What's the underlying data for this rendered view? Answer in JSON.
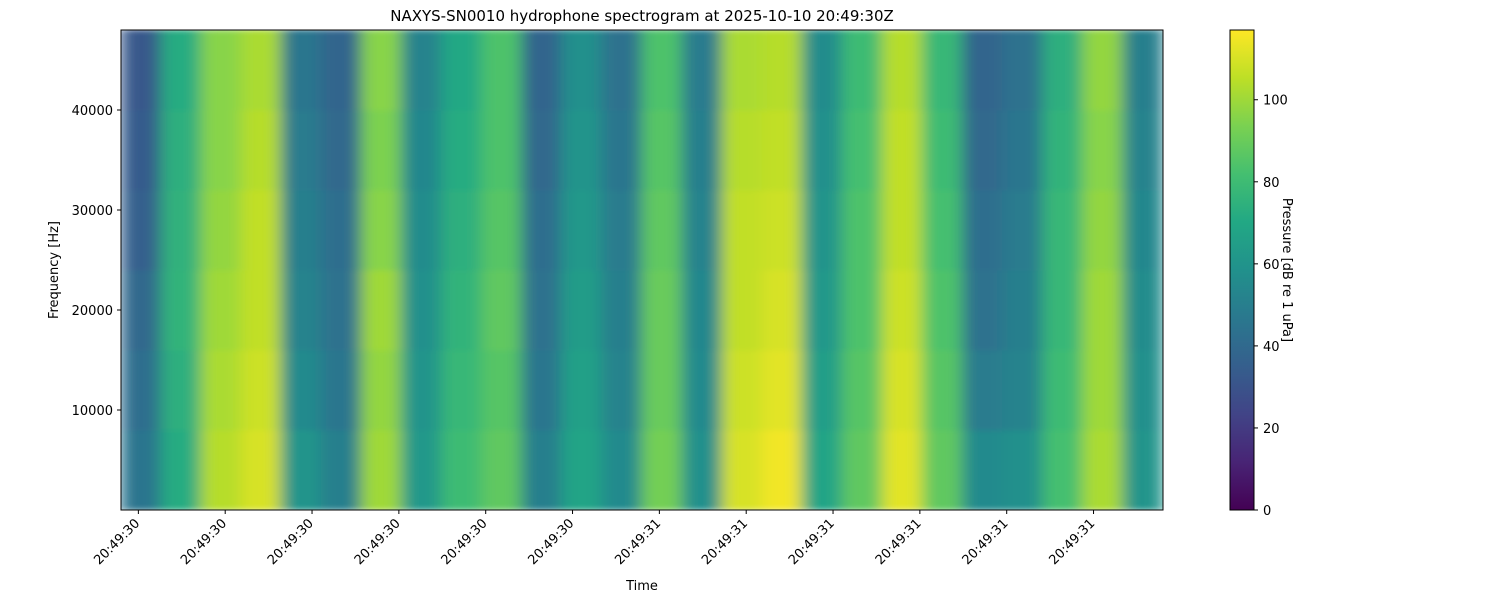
{
  "chart_data": {
    "type": "heatmap",
    "title": "NAXYS-SN0010 hydrophone spectrogram at 2025-10-10 20:49:30Z",
    "xlabel": "Time",
    "ylabel": "Frequency [Hz]",
    "colorbar_label": "Pressure [dB re 1 uPa]",
    "colormap": "viridis",
    "xlim": [
      0.38,
      1.58
    ],
    "xticks": [
      {
        "value": 0.4,
        "label": "20:49:30"
      },
      {
        "value": 0.5,
        "label": "20:49:30"
      },
      {
        "value": 0.6,
        "label": "20:49:30"
      },
      {
        "value": 0.7,
        "label": "20:49:30"
      },
      {
        "value": 0.8,
        "label": "20:49:30"
      },
      {
        "value": 0.9,
        "label": "20:49:30"
      },
      {
        "value": 1.0,
        "label": "20:49:31"
      },
      {
        "value": 1.1,
        "label": "20:49:31"
      },
      {
        "value": 1.2,
        "label": "20:49:31"
      },
      {
        "value": 1.3,
        "label": "20:49:31"
      },
      {
        "value": 1.4,
        "label": "20:49:31"
      },
      {
        "value": 1.5,
        "label": "20:49:31"
      }
    ],
    "ylim": [
      0,
      48000
    ],
    "yticks": [
      10000,
      20000,
      30000,
      40000
    ],
    "clim": [
      0,
      117
    ],
    "cticks": [
      0,
      20,
      40,
      60,
      80,
      100
    ],
    "z": [
      [
        45,
        72,
        104,
        110,
        60,
        50,
        100,
        62,
        80,
        88,
        50,
        68,
        55,
        92,
        58,
        110,
        115,
        68,
        88,
        112,
        88,
        55,
        58,
        82,
        102,
        60
      ],
      [
        42,
        74,
        102,
        108,
        55,
        46,
        98,
        60,
        78,
        86,
        46,
        66,
        52,
        90,
        55,
        108,
        112,
        65,
        86,
        110,
        86,
        48,
        52,
        80,
        100,
        58
      ],
      [
        40,
        76,
        100,
        106,
        52,
        44,
        100,
        58,
        76,
        88,
        44,
        64,
        50,
        90,
        54,
        106,
        110,
        62,
        84,
        108,
        84,
        44,
        50,
        78,
        100,
        56
      ],
      [
        36,
        75,
        98,
        106,
        50,
        42,
        96,
        56,
        74,
        86,
        42,
        62,
        48,
        88,
        52,
        106,
        108,
        60,
        84,
        106,
        82,
        42,
        48,
        78,
        98,
        54
      ],
      [
        34,
        74,
        96,
        104,
        48,
        40,
        94,
        54,
        72,
        84,
        40,
        60,
        46,
        86,
        50,
        104,
        106,
        58,
        82,
        106,
        80,
        40,
        46,
        76,
        96,
        52
      ],
      [
        32,
        72,
        96,
        102,
        46,
        38,
        96,
        52,
        70,
        84,
        38,
        58,
        44,
        84,
        48,
        102,
        104,
        56,
        80,
        104,
        78,
        38,
        44,
        74,
        98,
        50
      ]
    ]
  }
}
